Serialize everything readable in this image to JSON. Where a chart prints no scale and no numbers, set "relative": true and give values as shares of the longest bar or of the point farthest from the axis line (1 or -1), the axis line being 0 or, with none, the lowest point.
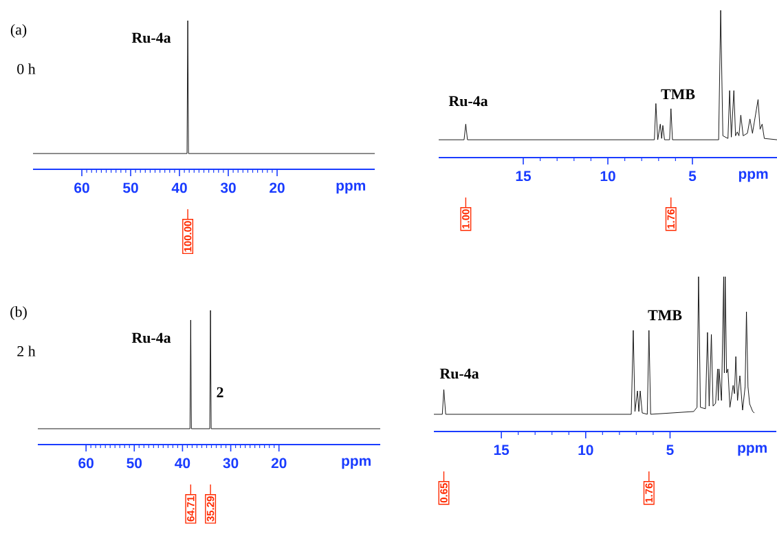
{
  "chart_data": [
    {
      "type": "line",
      "relative": true,
      "color": "#000000",
      "xlabel": "ppm",
      "xlim": [
        70,
        0
      ],
      "xticks": [
        60,
        50,
        40,
        30,
        20
      ],
      "x": [
        70,
        38.45,
        38.3,
        38.15,
        0
      ],
      "values": [
        0.106,
        0.106,
        1,
        0.106,
        0.106
      ],
      "annotations": [
        "(a)",
        "0 h",
        "**Ru-4a**",
        {
          "text": "100.00",
          "x": 38.3
        }
      ]
    },
    {
      "type": "line",
      "relative": true,
      "color": "#000000",
      "xlabel": "ppm",
      "xlim": [
        70,
        -1
      ],
      "xticks": [
        60,
        50,
        40,
        30,
        20
      ],
      "x": [
        70,
        38.45,
        38.3,
        38.15,
        34.35,
        34.2,
        34.05,
        -1
      ],
      "values": [
        0.118,
        0.118,
        0.928,
        0.118,
        0.118,
        1,
        0.118,
        0.118
      ],
      "annotations": [
        "(b)",
        "2 h",
        "**Ru-4a**",
        "**2**",
        {
          "text": "64.71",
          "x": 38.3
        },
        {
          "text": "35.29",
          "x": 34.2
        }
      ]
    },
    {
      "type": "line",
      "relative": true,
      "color": "#000000",
      "xlabel": "ppm",
      "xlim": [
        20,
        0
      ],
      "xticks": [
        15,
        10,
        5
      ],
      "x": [
        20,
        18.5,
        18.4,
        18.3,
        7.25,
        7.16,
        7.05,
        6.9,
        6.82,
        6.75,
        6.65,
        6.35,
        6.27,
        6.18,
        3.45,
        3.33,
        3.2,
        2.9,
        2.8,
        2.7,
        2.55,
        2.45,
        2.35,
        2.25,
        2.14,
        2.0,
        1.75,
        1.6,
        1.45,
        1.12,
        1.0,
        0.88,
        0.75,
        0
      ],
      "values": [
        0.121,
        0.121,
        0.227,
        0.121,
        0.121,
        0.367,
        0.121,
        0.227,
        0.13,
        0.218,
        0.121,
        0.121,
        0.332,
        0.121,
        0.121,
        1,
        0.148,
        0.13,
        0.455,
        0.139,
        0.455,
        0.148,
        0.174,
        0.148,
        0.288,
        0.148,
        0.165,
        0.262,
        0.165,
        0.394,
        0.192,
        0.227,
        0.13,
        0.121
      ],
      "annotations": [
        "**Ru-4a**",
        "**TMB**",
        {
          "text": "1.00",
          "x": 18.4
        },
        {
          "text": "1.76",
          "x": 6.27
        }
      ]
    },
    {
      "type": "line",
      "relative": true,
      "color": "#000000",
      "xlabel": "ppm",
      "xlim": [
        19,
        -1.3
      ],
      "xticks": [
        15,
        10,
        5
      ],
      "x": [
        19,
        18.5,
        18.41,
        18.3,
        7.3,
        7.18,
        7.08,
        6.93,
        6.85,
        6.77,
        6.65,
        6.35,
        6.25,
        6.15,
        3.6,
        3.4,
        3.31,
        3.2,
        2.9,
        2.78,
        2.68,
        2.55,
        2.45,
        2.3,
        2.18,
        2.14,
        2.1,
        1.95,
        1.82,
        1.78,
        1.73,
        1.65,
        1.57,
        1.45,
        1.26,
        1.18,
        1.1,
        1.0,
        0.86,
        0.7,
        0.55,
        0.47,
        0.38,
        0.28,
        0.1,
        0
      ],
      "values": [
        0.111,
        0.111,
        0.271,
        0.111,
        0.111,
        0.653,
        0.129,
        0.262,
        0.129,
        0.262,
        0.12,
        0.111,
        0.653,
        0.111,
        0.129,
        0.156,
        1,
        0.156,
        0.147,
        0.64,
        0.164,
        0.627,
        0.164,
        0.182,
        0.404,
        0.2,
        0.404,
        0.2,
        1,
        0.378,
        1,
        0.378,
        0.404,
        0.156,
        0.298,
        0.244,
        0.484,
        0.2,
        0.36,
        0.138,
        0.289,
        0.773,
        0.289,
        0.178,
        0.129,
        0.12
      ],
      "annotations": [
        "**Ru-4a**",
        "**TMB**",
        {
          "text": "0.65",
          "x": 18.41
        },
        {
          "text": "1.76",
          "x": 6.25
        }
      ]
    }
  ]
}
